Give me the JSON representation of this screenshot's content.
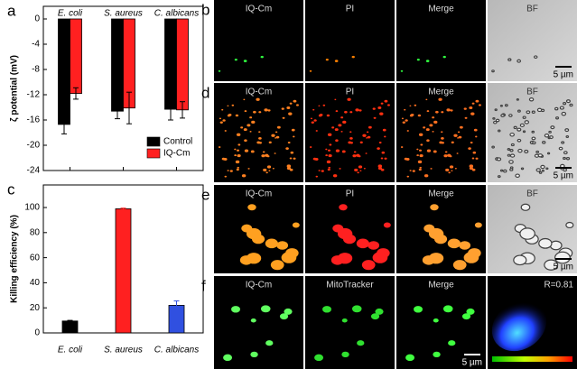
{
  "chart_data": [
    {
      "type": "bar",
      "panel_label": "a",
      "ylabel": "ζ potential (mV)",
      "categories": [
        "E. coli",
        "S. aureus",
        "C. albicans"
      ],
      "series": [
        {
          "name": "Control",
          "color": "#000000",
          "values": [
            -16.7,
            -14.6,
            -14.3
          ],
          "errors": [
            1.5,
            1.2,
            1.7
          ]
        },
        {
          "name": "IQ-Cm",
          "color": "#ff2020",
          "values": [
            -11.8,
            -14.1,
            -14.4
          ],
          "errors": [
            0.9,
            2.5,
            1.3
          ]
        }
      ],
      "ylim": [
        -24,
        2
      ],
      "yticks": [
        0,
        -4,
        -8,
        -12,
        -16,
        -20,
        -24
      ],
      "legend": "lower right"
    },
    {
      "type": "bar",
      "panel_label": "c",
      "ylabel": "Killing efficiency (%)",
      "categories": [
        "E. coli",
        "S. aureus",
        "C. albicans"
      ],
      "values": [
        9.5,
        99,
        22
      ],
      "errors": [
        0.5,
        0.5,
        3.5
      ],
      "colors": [
        "#000000",
        "#ff2020",
        "#3050e0"
      ],
      "ylim": [
        0,
        118
      ],
      "yticks": [
        0,
        20,
        40,
        60,
        80,
        100
      ]
    }
  ],
  "micrographs": [
    {
      "panel_label": "b",
      "channels": [
        "IQ-Cm",
        "PI",
        "Merge",
        "BF"
      ],
      "scale_bar": "5 µm"
    },
    {
      "panel_label": "d",
      "channels": [
        "IQ-Cm",
        "PI",
        "Merge",
        "BF"
      ],
      "scale_bar": "5 µm"
    },
    {
      "panel_label": "e",
      "channels": [
        "IQ-Cm",
        "PI",
        "Merge",
        "BF"
      ],
      "scale_bar": "5 µm"
    },
    {
      "panel_label": "f",
      "channels": [
        "IQ-Cm",
        "MitoTracker",
        "Merge",
        "R=0.81"
      ],
      "scale_bar": "5 µm"
    }
  ]
}
